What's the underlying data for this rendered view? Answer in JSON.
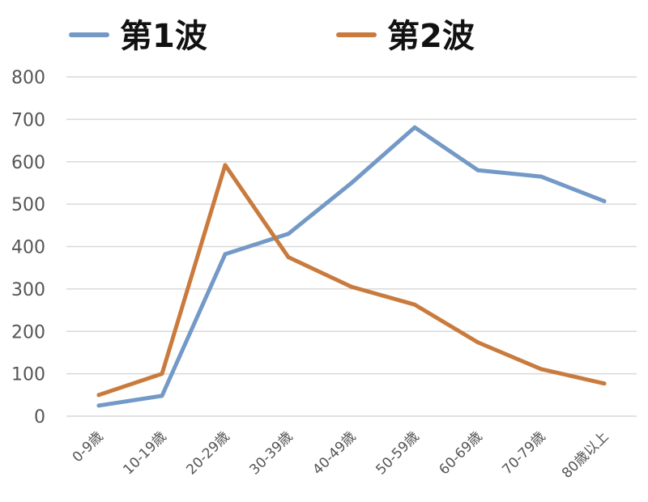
{
  "chart_data": {
    "type": "line",
    "title": "",
    "xlabel": "",
    "ylabel": "",
    "categories": [
      "0-9歳",
      "10-19歳",
      "20-29歳",
      "30-39歳",
      "40-49歳",
      "50-59歳",
      "60-69歳",
      "70-79歳",
      "80歳以上"
    ],
    "ylim": [
      0,
      800
    ],
    "yticks": [
      "0",
      "100",
      "200",
      "300",
      "400",
      "500",
      "600",
      "700",
      "800"
    ],
    "grid": true,
    "legend_position": "top",
    "series": [
      {
        "name": "第1波",
        "color": "#7399C6",
        "values": [
          25,
          48,
          382,
          430,
          550,
          681,
          580,
          565,
          507
        ]
      },
      {
        "name": "第2波",
        "color": "#C97B3E",
        "values": [
          50,
          100,
          592,
          375,
          305,
          263,
          174,
          111,
          77
        ]
      }
    ]
  }
}
